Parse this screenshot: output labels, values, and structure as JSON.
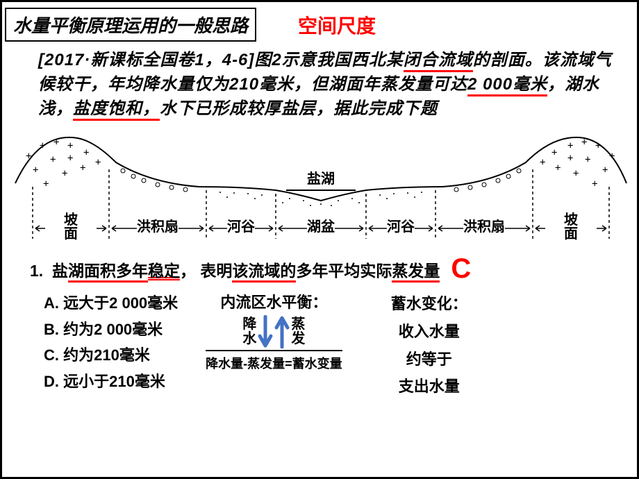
{
  "title": "水量平衡原理运用的一般思路",
  "scale_label": "空间尺度",
  "passage": {
    "pre1": "[2017·新课标全国卷1，4-6]图2示意我国西北某",
    "ul1": "闭合流域",
    "post1": "的剖面。该流域气候较干，年均降水量仅为210毫米，但湖面年蒸发量可达",
    "ul2": "2 000毫米",
    "mid": "，湖水浅，",
    "ul3": "盐度饱和，",
    "post3": "水下已形成较厚盐层，据此完成下题"
  },
  "diagram": {
    "lake_label": "盐湖",
    "sections": [
      "坡面",
      "洪积扇",
      "河谷",
      "湖盆",
      "河谷",
      "洪积扇",
      "坡面"
    ],
    "line_color": "#000000",
    "label_fontsize": 18
  },
  "q_number": "1.",
  "q_p1": "盐",
  "q_u1": "湖面积",
  "q_u2": "多年",
  "q_u3": "稳定",
  "q_comma": "，",
  "q_p2": "表明",
  "q_u4": "该流域的",
  "q_p3": "多年平均实际",
  "q_u5": "蒸发量",
  "answer": "C",
  "options": {
    "A": "A.  远大于2 000毫米",
    "B": "B.  约为2 000毫米",
    "C": "C.  约为210毫米",
    "D": "D.  远小于210毫米"
  },
  "balance": {
    "title": "内流区水平衡：",
    "left_label1": "降",
    "left_label2": "水",
    "right_label1": "蒸",
    "right_label2": "发",
    "arrow_color": "#4472c4",
    "equation": "降水量-蒸发量=蓄水变量"
  },
  "storage": {
    "title": "蓄水变化：",
    "line1": "收入水量",
    "line2": "约等于",
    "line3": "支出水量"
  }
}
